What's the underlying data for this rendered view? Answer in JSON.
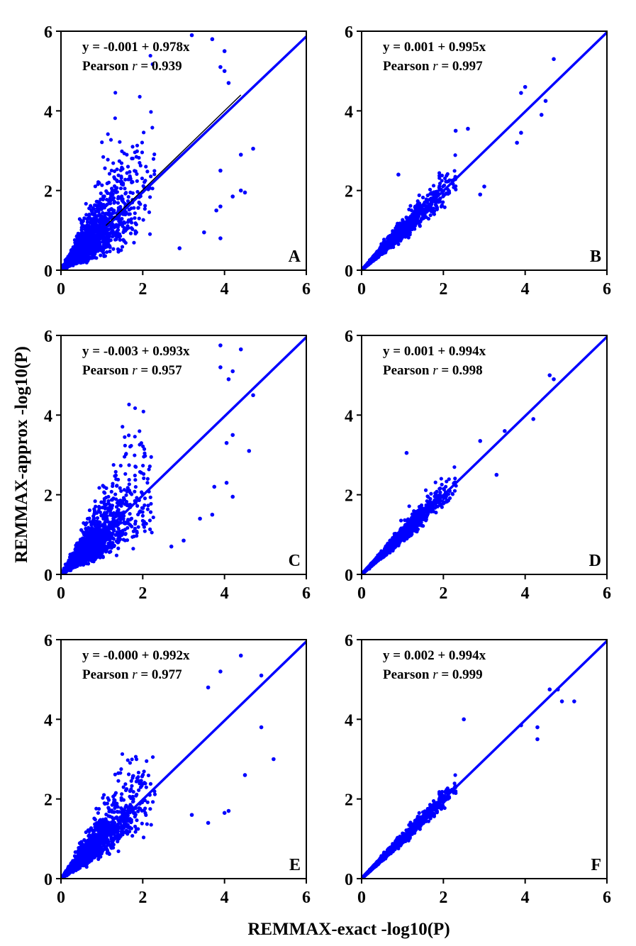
{
  "chart_data": {
    "type": "scatter",
    "layout": "3 rows x 2 columns",
    "xlabel": "REMMAX-exact -log10(P)",
    "ylabel": "REMMAX-approx -log10(P)",
    "xlim": [
      0,
      6
    ],
    "ylim": [
      0,
      6
    ],
    "xticks": [
      "0",
      "2",
      "4",
      "6"
    ],
    "yticks": [
      "0",
      "2",
      "4",
      "6"
    ],
    "grid": false,
    "point_color": "#0000ff",
    "fit_line_color": "#0000ff",
    "panels": [
      {
        "label": "A",
        "equation": "y = -0.001 + 0.978x",
        "pearson_prefix": "Pearson ",
        "pearson_r_symbol": "r",
        "pearson_value": " = 0.939",
        "intercept": -0.001,
        "slope": 0.978,
        "r": 0.939,
        "outliers": [
          [
            3.2,
            5.9
          ],
          [
            3.7,
            5.8
          ],
          [
            4.0,
            5.5
          ],
          [
            3.9,
            5.1
          ],
          [
            4.0,
            5.0
          ],
          [
            4.1,
            4.7
          ],
          [
            4.7,
            3.05
          ],
          [
            4.4,
            2.9
          ],
          [
            3.9,
            2.5
          ],
          [
            4.4,
            2.0
          ],
          [
            4.5,
            1.95
          ],
          [
            4.2,
            1.85
          ],
          [
            3.9,
            1.6
          ],
          [
            3.8,
            1.5
          ],
          [
            3.5,
            0.95
          ],
          [
            3.9,
            0.8
          ],
          [
            2.9,
            0.55
          ]
        ]
      },
      {
        "label": "B",
        "equation": "y = 0.001 + 0.995x",
        "pearson_prefix": "Pearson ",
        "pearson_r_symbol": "r",
        "pearson_value": " = 0.997",
        "intercept": 0.001,
        "slope": 0.995,
        "r": 0.997,
        "outliers": [
          [
            4.7,
            5.3
          ],
          [
            4.0,
            4.6
          ],
          [
            3.9,
            4.45
          ],
          [
            4.5,
            4.25
          ],
          [
            4.4,
            3.9
          ],
          [
            3.8,
            3.2
          ],
          [
            3.9,
            3.45
          ],
          [
            0.9,
            2.4
          ],
          [
            2.3,
            3.5
          ],
          [
            2.6,
            3.55
          ],
          [
            3.0,
            2.1
          ],
          [
            2.9,
            1.9
          ]
        ]
      },
      {
        "label": "C",
        "equation": "y = -0.003 + 0.993x",
        "pearson_prefix": "Pearson ",
        "pearson_r_symbol": "r",
        "pearson_value": " = 0.957",
        "intercept": -0.003,
        "slope": 0.993,
        "r": 0.957,
        "outliers": [
          [
            3.9,
            5.75
          ],
          [
            4.4,
            5.65
          ],
          [
            3.9,
            5.2
          ],
          [
            4.2,
            5.1
          ],
          [
            4.1,
            4.9
          ],
          [
            4.7,
            4.5
          ],
          [
            4.6,
            3.1
          ],
          [
            4.2,
            3.5
          ],
          [
            4.05,
            3.3
          ],
          [
            3.75,
            2.2
          ],
          [
            4.2,
            1.95
          ],
          [
            4.05,
            2.3
          ],
          [
            3.7,
            1.5
          ],
          [
            3.4,
            1.4
          ],
          [
            2.7,
            0.7
          ],
          [
            3.0,
            0.85
          ]
        ]
      },
      {
        "label": "D",
        "equation": "y = 0.001 + 0.994x",
        "pearson_prefix": "Pearson ",
        "pearson_r_symbol": "r",
        "pearson_value": " = 0.998",
        "intercept": 0.001,
        "slope": 0.994,
        "r": 0.998,
        "outliers": [
          [
            4.6,
            5.0
          ],
          [
            4.7,
            4.9
          ],
          [
            3.5,
            3.6
          ],
          [
            2.9,
            3.35
          ],
          [
            1.1,
            3.05
          ],
          [
            4.2,
            3.9
          ],
          [
            3.3,
            2.5
          ]
        ]
      },
      {
        "label": "E",
        "equation": "y = -0.000 + 0.992x",
        "pearson_prefix": "Pearson ",
        "pearson_r_symbol": "r",
        "pearson_value": " = 0.977",
        "intercept": -0.0,
        "slope": 0.992,
        "r": 0.977,
        "outliers": [
          [
            4.4,
            5.6
          ],
          [
            3.9,
            5.2
          ],
          [
            4.9,
            5.1
          ],
          [
            3.6,
            4.8
          ],
          [
            4.9,
            3.8
          ],
          [
            5.2,
            3.0
          ],
          [
            4.5,
            2.6
          ],
          [
            4.1,
            1.7
          ],
          [
            4.0,
            1.65
          ],
          [
            3.6,
            1.4
          ],
          [
            3.2,
            1.6
          ]
        ]
      },
      {
        "label": "F",
        "equation": "y = 0.002 + 0.994x",
        "pearson_prefix": "Pearson ",
        "pearson_r_symbol": "r",
        "pearson_value": " = 0.999",
        "intercept": 0.002,
        "slope": 0.994,
        "r": 0.999,
        "outliers": [
          [
            4.6,
            4.75
          ],
          [
            4.8,
            4.75
          ],
          [
            4.9,
            4.45
          ],
          [
            5.2,
            4.45
          ],
          [
            2.5,
            4.0
          ],
          [
            4.3,
            3.8
          ],
          [
            4.3,
            3.5
          ],
          [
            3.9,
            3.85
          ]
        ]
      }
    ]
  }
}
